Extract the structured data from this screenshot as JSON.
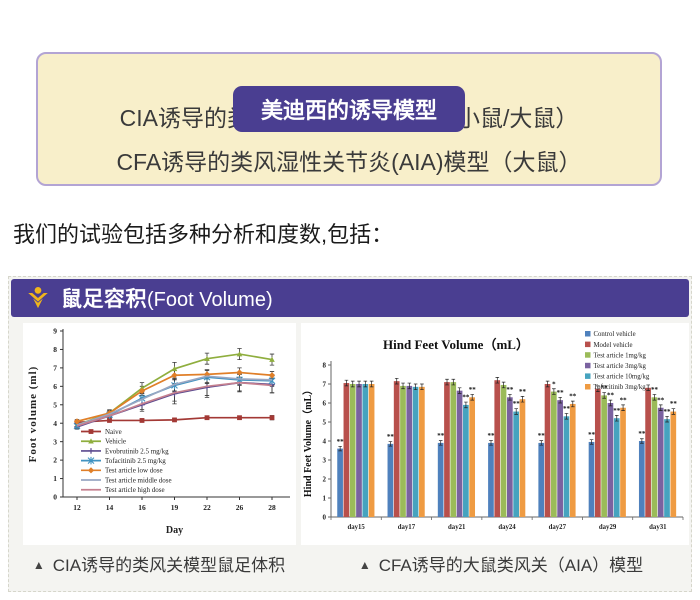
{
  "header_box": {
    "badge": "美迪西的诱导模型",
    "lines": [
      "CIA诱导的类风湿性关节炎模型（小鼠/大鼠）",
      "CFA诱导的类风湿性关节炎(AIA)模型（大鼠）"
    ],
    "bg": "#f8efca",
    "border_color": "#b3a4d4",
    "badge_bg": "#4a3e91"
  },
  "intro": {
    "text": "我们的试验包括多种分析和度数,包括："
  },
  "panel": {
    "title_zh": "鼠足容积",
    "title_en": "(Foot Volume)",
    "header_bg": "#4a3e91",
    "icon_color": "#f0b51c",
    "icon_name": "medicilon-mark-icon",
    "captions": [
      {
        "arrow": "▲",
        "text": "CIA诱导的类风关模型鼠足体积"
      },
      {
        "arrow": "▲",
        "text": "CFA诱导的大鼠类风关（AIA）模型"
      }
    ]
  },
  "chart_data": [
    {
      "type": "line",
      "title": "",
      "xlabel": "Day",
      "ylabel": "Foot volume (ml)",
      "x": [
        12,
        14,
        16,
        19,
        22,
        26,
        28
      ],
      "ylim": [
        0,
        9
      ],
      "yticks": [
        0,
        1,
        2,
        3,
        4,
        5,
        6,
        7,
        8,
        9
      ],
      "grid": false,
      "legend_position": "inside-left-bottom",
      "series": [
        {
          "name": "Naive",
          "color": "#a33935",
          "marker": "square",
          "values": [
            4.05,
            4.15,
            4.15,
            4.18,
            4.3,
            4.3,
            4.3
          ],
          "err": [
            0.08,
            0.08,
            0.08,
            0.08,
            0.1,
            0.1,
            0.12
          ]
        },
        {
          "name": "Vehicle",
          "color": "#8fae3e",
          "marker": "tri",
          "values": [
            3.9,
            4.55,
            5.9,
            6.95,
            7.5,
            7.75,
            7.45
          ],
          "err": [
            0.12,
            0.18,
            0.3,
            0.35,
            0.3,
            0.3,
            0.3
          ]
        },
        {
          "name": "Evobrutinib 2.5 mg/kg",
          "color": "#5b4a8f",
          "marker": "plus",
          "values": [
            3.8,
            4.4,
            5.0,
            5.6,
            5.95,
            6.2,
            6.1
          ],
          "err": [
            0.12,
            0.2,
            0.35,
            0.55,
            0.55,
            0.5,
            0.45
          ]
        },
        {
          "name": "Tofacitinib 2.5 mg/kg",
          "color": "#4193c1",
          "marker": "x",
          "values": [
            3.85,
            4.45,
            5.35,
            6.05,
            6.5,
            6.35,
            6.3
          ],
          "err": [
            0.12,
            0.2,
            0.3,
            0.35,
            0.35,
            0.3,
            0.3
          ]
        },
        {
          "name": "Test article low dose",
          "color": "#e07f28",
          "marker": "diamond",
          "values": [
            4.1,
            4.55,
            5.75,
            6.6,
            6.65,
            6.75,
            6.6
          ],
          "err": [
            0.1,
            0.15,
            0.25,
            0.25,
            0.25,
            0.25,
            0.2
          ]
        },
        {
          "name": "Test article middle dose",
          "color": "#9aa7c2",
          "marker": "none",
          "values": [
            3.9,
            4.5,
            5.3,
            6.1,
            6.55,
            6.4,
            6.35
          ],
          "err": [
            0.12,
            0.2,
            0.3,
            0.35,
            0.35,
            0.3,
            0.3
          ]
        },
        {
          "name": "Test article high dose",
          "color": "#c5808f",
          "marker": "none",
          "values": [
            3.85,
            4.4,
            5.05,
            5.65,
            6.0,
            6.2,
            6.05
          ],
          "err": [
            0.12,
            0.2,
            0.3,
            0.45,
            0.5,
            0.45,
            0.4
          ]
        }
      ]
    },
    {
      "type": "bar",
      "title": "Hind Feet Volume（mL）",
      "xlabel": "",
      "ylabel": "Hind Feet Volume（mL）",
      "categories": [
        "day15",
        "day17",
        "day21",
        "day24",
        "day27",
        "day29",
        "day31"
      ],
      "ylim": [
        0,
        8
      ],
      "yticks": [
        0,
        1,
        2,
        3,
        4,
        5,
        6,
        7,
        8
      ],
      "grid": false,
      "legend_position": "top-right",
      "series": [
        {
          "name": "Control vehicle",
          "color": "#4f81bd",
          "err": 0.12,
          "values": [
            3.6,
            3.85,
            3.9,
            3.9,
            3.9,
            3.95,
            4.0
          ],
          "sig": [
            "**",
            "**",
            "**",
            "**",
            "**",
            "**",
            "**"
          ]
        },
        {
          "name": "Model vehicle",
          "color": "#b8504c",
          "err": 0.15,
          "values": [
            7.05,
            7.15,
            7.1,
            7.2,
            7.0,
            6.75,
            6.8
          ],
          "sig": [
            "",
            "",
            "",
            "",
            "",
            "",
            ""
          ]
        },
        {
          "name": "Test article 1mg/kg",
          "color": "#9bbb59",
          "err": 0.15,
          "values": [
            7.0,
            6.9,
            7.1,
            6.95,
            6.6,
            6.4,
            6.3
          ],
          "sig": [
            "",
            "",
            "",
            "",
            "*",
            "**",
            "**"
          ]
        },
        {
          "name": "Test article 3mg/kg",
          "color": "#7a62a0",
          "err": 0.15,
          "values": [
            7.0,
            6.9,
            6.65,
            6.3,
            6.15,
            6.0,
            5.75
          ],
          "sig": [
            "",
            "",
            "",
            "**",
            "**",
            "**",
            "**"
          ]
        },
        {
          "name": "Test article 10mg/kg",
          "color": "#46a3bf",
          "err": 0.15,
          "values": [
            7.0,
            6.85,
            5.9,
            5.55,
            5.3,
            5.2,
            5.15
          ],
          "sig": [
            "",
            "",
            "**",
            "**",
            "**",
            "**",
            "**"
          ]
        },
        {
          "name": "Tofacitinib 3mg/kg",
          "color": "#ef9b42",
          "err": 0.15,
          "values": [
            7.0,
            6.85,
            6.3,
            6.2,
            5.95,
            5.75,
            5.55
          ],
          "sig": [
            "",
            "",
            "**",
            "**",
            "**",
            "**",
            "**"
          ]
        }
      ]
    }
  ]
}
